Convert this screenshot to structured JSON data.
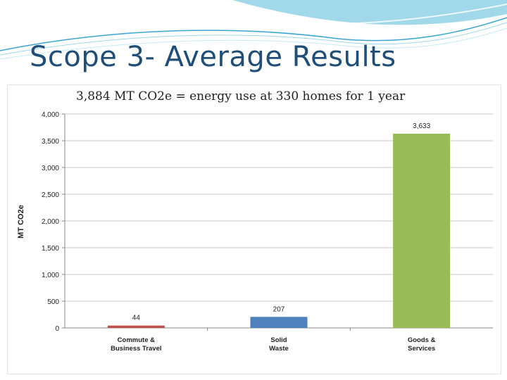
{
  "slide": {
    "title": "Scope 3- Average Results"
  },
  "colors": {
    "title": "#1f4e79",
    "wave_light": "#bfe6f3",
    "wave_dark": "#3aa6cf",
    "bar_commute": "#c0504d",
    "bar_waste": "#4f81bd",
    "bar_goods": "#9bbb59"
  },
  "chart_data": {
    "type": "bar",
    "title": "3,884 MT CO2e = energy use at 330 homes for 1 year",
    "ylabel": "MT CO2e",
    "xlabel": "",
    "ylim": [
      0,
      4000
    ],
    "yticks": [
      0,
      500,
      1000,
      1500,
      2000,
      2500,
      3000,
      3500,
      4000
    ],
    "ytick_labels": [
      "0",
      "500",
      "1,000",
      "1,500",
      "2,000",
      "2,500",
      "3,000",
      "3,500",
      "4,000"
    ],
    "grid": true,
    "categories": [
      [
        "Commute &",
        "Business Travel"
      ],
      [
        "Solid",
        "Waste"
      ],
      [
        "Goods &",
        "Services"
      ]
    ],
    "values": [
      44,
      207,
      3633
    ],
    "value_labels": [
      "44",
      "207",
      "3,633"
    ]
  }
}
